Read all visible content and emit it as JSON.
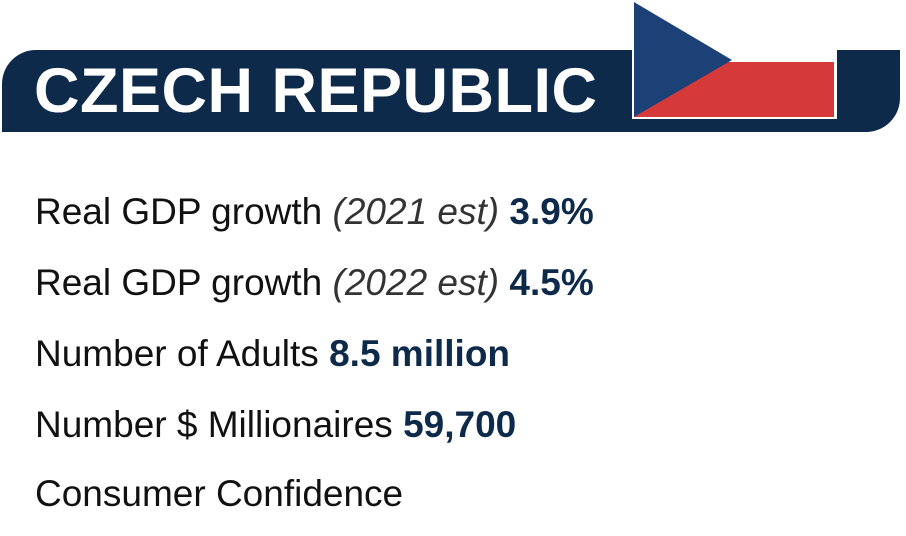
{
  "header": {
    "country": "CZECH REPUBLIC",
    "flag_icon": "czech-flag-icon",
    "colors": {
      "banner": "#0e2a4a",
      "flag_blue": "#1c4177",
      "flag_red": "#d6393a",
      "flag_white": "#ffffff",
      "value_text": "#0e2a4a"
    }
  },
  "stats": [
    {
      "label": "Real GDP growth",
      "note": "(2021 est)",
      "value": "3.9%"
    },
    {
      "label": "Real GDP growth",
      "note": "(2022 est)",
      "value": "4.5%"
    },
    {
      "label": "Number of Adults",
      "note": "",
      "value": "8.5 million"
    },
    {
      "label": "Number $ Millionaires",
      "note": "",
      "value": "59,700"
    },
    {
      "label": "Consumer Confidence",
      "note": "",
      "value": ""
    }
  ]
}
